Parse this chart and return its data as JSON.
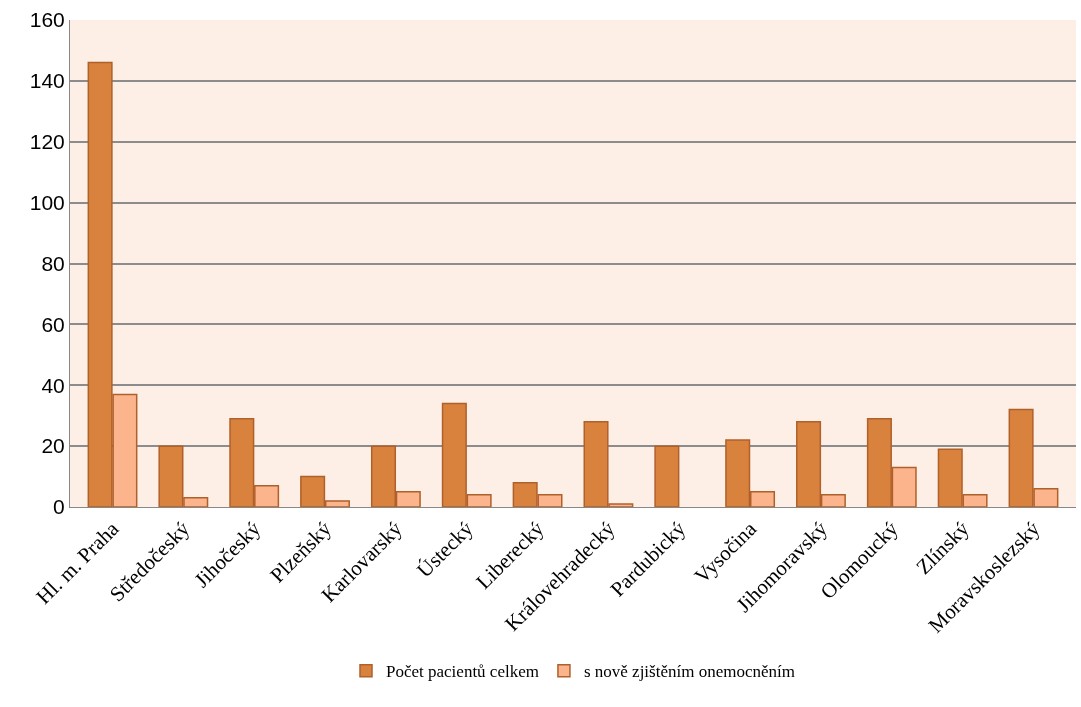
{
  "chart_data": {
    "type": "bar",
    "categories": [
      "Hl. m. Praha",
      "Středočeský",
      "Jihočeský",
      "Plzeňský",
      "Karlovarský",
      "Ústecký",
      "Liberecký",
      "Královehradecký",
      "Pardubický",
      "Vysočina",
      "Jihomoravský",
      "Olomoucký",
      "Zlínský",
      "Moravskoslezský"
    ],
    "series": [
      {
        "name": "Počet pacientů celkem",
        "color": "#d9823d",
        "values": [
          146,
          20,
          29,
          10,
          20,
          34,
          8,
          28,
          20,
          22,
          28,
          29,
          19,
          32
        ]
      },
      {
        "name": "s nově zjištěním onemocněním",
        "color": "#fbb48c",
        "values": [
          37,
          3,
          7,
          2,
          5,
          4,
          4,
          1,
          0,
          5,
          4,
          13,
          4,
          6
        ]
      }
    ],
    "ylim": [
      0,
      160
    ],
    "yticks": [
      0,
      20,
      40,
      60,
      80,
      100,
      120,
      140,
      160
    ],
    "grid": "y",
    "legend": "bottom"
  }
}
